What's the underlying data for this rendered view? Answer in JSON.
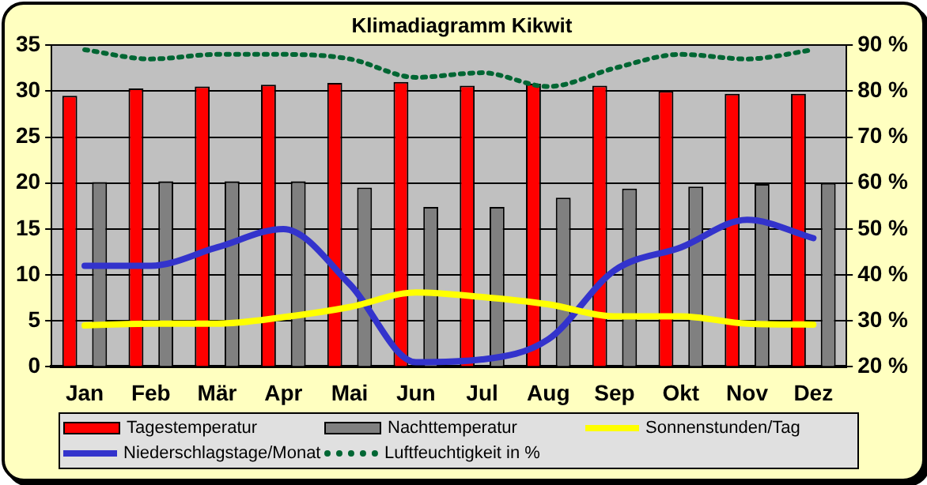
{
  "chart_data": {
    "type": "bar",
    "title": "Klimadiagramm Kikwit",
    "categories": [
      "Jan",
      "Feb",
      "Mär",
      "Apr",
      "Mai",
      "Jun",
      "Jul",
      "Aug",
      "Sep",
      "Okt",
      "Nov",
      "Dez"
    ],
    "series": [
      {
        "name": "Tagestemperatur",
        "color": "#ff0000",
        "values": [
          29.5,
          30.3,
          30.5,
          30.7,
          30.9,
          31.0,
          30.6,
          30.8,
          30.6,
          30.0,
          29.7,
          29.7
        ]
      },
      {
        "name": "Nachttemperatur",
        "color": "#808080",
        "values": [
          20.1,
          20.2,
          20.2,
          20.2,
          19.5,
          17.4,
          17.4,
          18.4,
          19.4,
          19.6,
          19.9,
          20.0
        ]
      },
      {
        "name": "Sonnenstunden/Tag",
        "type": "line",
        "color": "#ffff00",
        "line_style": "solid",
        "values": [
          4.5,
          4.7,
          4.7,
          5.4,
          6.5,
          8.1,
          7.6,
          6.8,
          5.5,
          5.5,
          4.7,
          4.6
        ]
      },
      {
        "name": "Niederschlagstage/Monat",
        "type": "line",
        "color": "#3333cc",
        "line_style": "solid",
        "values": [
          11,
          11,
          13,
          15,
          9,
          0.5,
          0.8,
          3,
          10.5,
          13,
          16,
          14
        ]
      },
      {
        "name": "Luftfeuchtigkeit in %",
        "type": "line",
        "color": "#006633",
        "line_style": "dotted",
        "axis": "y2",
        "values": [
          89,
          87,
          88,
          88,
          87,
          83,
          84,
          81,
          85,
          88,
          87,
          89
        ]
      }
    ],
    "ylim": [
      0,
      35
    ],
    "yticks": [
      0,
      5,
      10,
      15,
      20,
      25,
      30,
      35
    ],
    "y2lim": [
      20,
      90
    ],
    "y2ticks": [
      {
        "value": 20,
        "label": "20 %"
      },
      {
        "value": 30,
        "label": "30 %"
      },
      {
        "value": 40,
        "label": "40 %"
      },
      {
        "value": 50,
        "label": "50 %"
      },
      {
        "value": 60,
        "label": "60 %"
      },
      {
        "value": 70,
        "label": "70 %"
      },
      {
        "value": 80,
        "label": "80 %"
      },
      {
        "value": 90,
        "label": "90 %"
      }
    ],
    "grid": "y",
    "legend": "bottom",
    "marker": "none"
  }
}
